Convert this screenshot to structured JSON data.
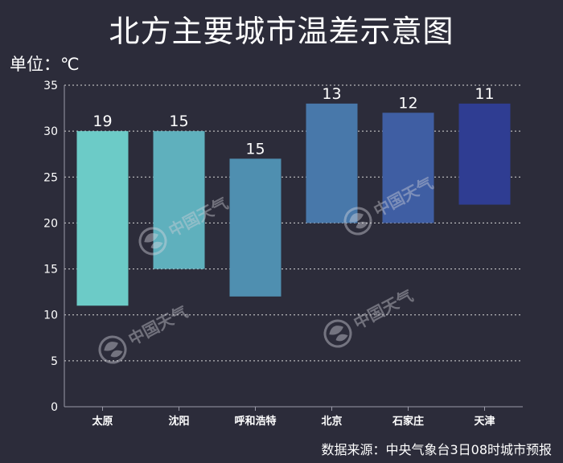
{
  "title": "北方主要城市温差示意图",
  "unit_label": "单位：℃",
  "source": "数据来源：中央气象台3日08时城市预报",
  "watermark": "中国天气",
  "chart_data": {
    "type": "bar",
    "subtype": "floating-range",
    "categories": [
      "太原",
      "沈阳",
      "呼和浩特",
      "北京",
      "石家庄",
      "天津"
    ],
    "low": [
      11,
      15,
      12,
      20,
      20,
      22
    ],
    "high": [
      30,
      30,
      27,
      33,
      32,
      33
    ],
    "labels": [
      "19",
      "15",
      "15",
      "13",
      "12",
      "11"
    ],
    "colors": [
      "#6ccbc7",
      "#5fb0bd",
      "#4f8fb0",
      "#4878aa",
      "#3f5ea3",
      "#2f3d92"
    ],
    "ylim": [
      0,
      35
    ],
    "yticks": [
      0,
      5,
      10,
      15,
      20,
      25,
      30,
      35
    ],
    "grid": true,
    "xlabel": "",
    "ylabel": ""
  }
}
